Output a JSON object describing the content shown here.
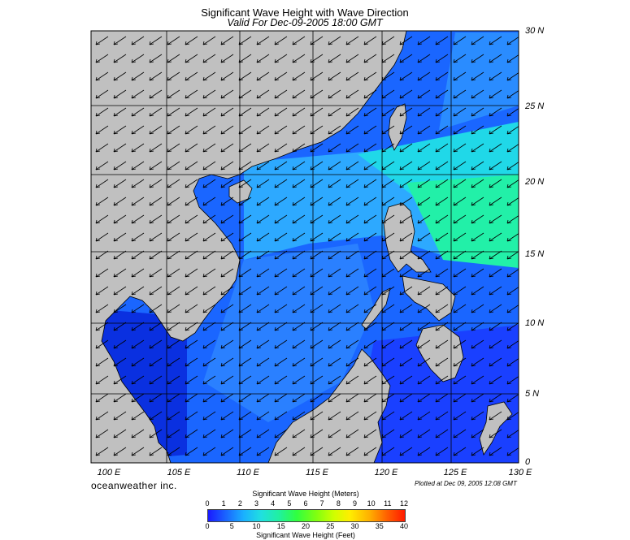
{
  "title": "Significant Wave Height with Wave Direction",
  "subtitle": "Valid For Dec-09-2005 18:00 GMT",
  "lat_labels": [
    "30 N",
    "25 N",
    "20 N",
    "15 N",
    "10 N",
    "5 N",
    "0"
  ],
  "lon_labels": [
    "100 E",
    "105 E",
    "110 E",
    "115 E",
    "120 E",
    "125 E",
    "130 E"
  ],
  "brand": "oceanweather inc.",
  "plotted": "Plotted at Dec 09, 2005 12:08 GMT",
  "colorbar": {
    "top_title": "Significant Wave Height (Meters)",
    "bottom_title": "Significant Wave Height (Feet)",
    "meters": [
      "0",
      "1",
      "2",
      "3",
      "4",
      "5",
      "6",
      "7",
      "8",
      "9",
      "10",
      "11",
      "12"
    ],
    "feet": [
      "0",
      "5",
      "10",
      "15",
      "20",
      "25",
      "30",
      "35",
      "40"
    ]
  },
  "colors": {
    "land": "#c0c0c0",
    "deep_blue": "#1a1aff",
    "sea_blue": "#1a6dff",
    "cyan": "#20e0e0",
    "green": "#20f0a0"
  }
}
